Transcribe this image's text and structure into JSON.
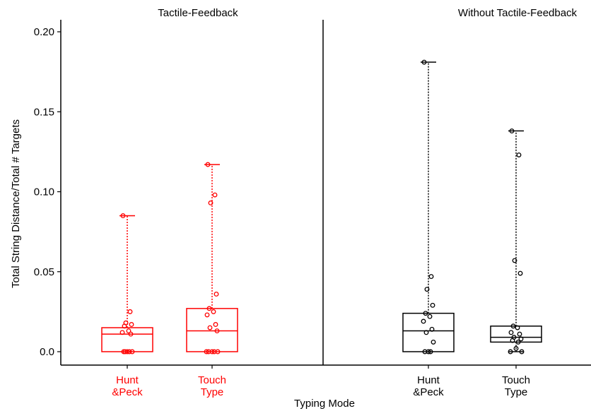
{
  "chart_data": {
    "type": "boxplot",
    "xlabel": "Typing Mode",
    "ylabel": "Total String Distance/Total # Targets",
    "ylim": [
      0,
      0.2
    ],
    "yticks": [
      0.0,
      0.05,
      0.1,
      0.15,
      0.2
    ],
    "ytick_labels": [
      "0.0",
      "0.05",
      "0.10",
      "0.15",
      "0.20"
    ],
    "panels": [
      {
        "title": "Tactile-Feedback",
        "color": "#ff0000",
        "groups": [
          {
            "label_lines": [
              "Hunt",
              "&Peck"
            ],
            "min": 0.0,
            "q1": 0.0,
            "median": 0.011,
            "q3": 0.015,
            "max": 0.085,
            "points": [
              0.085,
              0.025,
              0.018,
              0.017,
              0.016,
              0.013,
              0.012,
              0.011,
              0.0,
              0.0,
              0.0,
              0.0,
              0.0
            ]
          },
          {
            "label_lines": [
              "Touch",
              "Type"
            ],
            "min": 0.0,
            "q1": 0.0,
            "median": 0.013,
            "q3": 0.027,
            "max": 0.117,
            "points": [
              0.117,
              0.098,
              0.093,
              0.036,
              0.027,
              0.025,
              0.023,
              0.017,
              0.015,
              0.013,
              0.0,
              0.0,
              0.0,
              0.0,
              0.0
            ]
          }
        ]
      },
      {
        "title": "Without Tactile-Feedback",
        "color": "#000000",
        "groups": [
          {
            "label_lines": [
              "Hunt",
              "&Peck"
            ],
            "min": 0.0,
            "q1": 0.0,
            "median": 0.013,
            "q3": 0.024,
            "max": 0.181,
            "points": [
              0.181,
              0.047,
              0.039,
              0.029,
              0.024,
              0.022,
              0.019,
              0.014,
              0.012,
              0.006,
              0.0,
              0.0,
              0.0
            ]
          },
          {
            "label_lines": [
              "Touch",
              "Type"
            ],
            "min": 0.0,
            "q1": 0.006,
            "median": 0.009,
            "q3": 0.016,
            "max": 0.138,
            "points": [
              0.138,
              0.123,
              0.057,
              0.049,
              0.016,
              0.015,
              0.012,
              0.011,
              0.009,
              0.008,
              0.007,
              0.006,
              0.002,
              0.0,
              0.0
            ]
          }
        ]
      }
    ]
  }
}
